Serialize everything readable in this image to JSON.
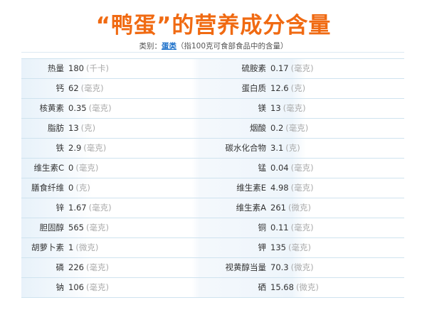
{
  "title": "“鸭蛋”的营养成分含量",
  "subtitle": {
    "prefix": "类别：",
    "category_link": "蛋类",
    "note": "（指100克可食部食品中的含量）"
  },
  "rows": [
    {
      "left": {
        "name": "热量",
        "value": "180",
        "unit": "(千卡)"
      },
      "right": {
        "name": "硫胺素",
        "value": "0.17",
        "unit": "(毫克)"
      }
    },
    {
      "left": {
        "name": "钙",
        "value": "62",
        "unit": "(毫克)"
      },
      "right": {
        "name": "蛋白质",
        "value": "12.6",
        "unit": "(克)"
      }
    },
    {
      "left": {
        "name": "核黄素",
        "value": "0.35",
        "unit": "(毫克)"
      },
      "right": {
        "name": "镁",
        "value": "13",
        "unit": "(毫克)"
      }
    },
    {
      "left": {
        "name": "脂肪",
        "value": "13",
        "unit": "(克)"
      },
      "right": {
        "name": "烟酸",
        "value": "0.2",
        "unit": "(毫克)"
      }
    },
    {
      "left": {
        "name": "铁",
        "value": "2.9",
        "unit": "(毫克)"
      },
      "right": {
        "name": "碳水化合物",
        "value": "3.1",
        "unit": "(克)"
      }
    },
    {
      "left": {
        "name": "维生素C",
        "value": "0",
        "unit": "(毫克)"
      },
      "right": {
        "name": "锰",
        "value": "0.04",
        "unit": "(毫克)"
      }
    },
    {
      "left": {
        "name": "膳食纤维",
        "value": "0",
        "unit": "(克)"
      },
      "right": {
        "name": "维生素E",
        "value": "4.98",
        "unit": "(毫克)"
      }
    },
    {
      "left": {
        "name": "锌",
        "value": "1.67",
        "unit": "(毫克)"
      },
      "right": {
        "name": "维生素A",
        "value": "261",
        "unit": "(微克)"
      }
    },
    {
      "left": {
        "name": "胆固醇",
        "value": "565",
        "unit": "(毫克)"
      },
      "right": {
        "name": "铜",
        "value": "0.11",
        "unit": "(毫克)"
      }
    },
    {
      "left": {
        "name": "胡萝卜素",
        "value": "1",
        "unit": "(微克)"
      },
      "right": {
        "name": "钾",
        "value": "135",
        "unit": "(毫克)"
      }
    },
    {
      "left": {
        "name": "磷",
        "value": "226",
        "unit": "(毫克)"
      },
      "right": {
        "name": "视黄醇当量",
        "value": "70.3",
        "unit": "(微克)"
      }
    },
    {
      "left": {
        "name": "钠",
        "value": "106",
        "unit": "(毫克)"
      },
      "right": {
        "name": "硒",
        "value": "15.68",
        "unit": "(微克)"
      }
    }
  ],
  "colors": {
    "title": "#f06a12",
    "link": "#1a6fc9",
    "row_border": "#cfe3ef",
    "label_bg": "#e8f2fa"
  }
}
